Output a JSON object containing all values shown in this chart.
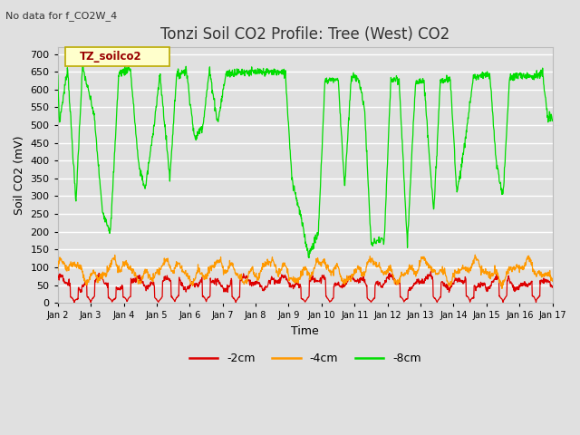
{
  "title": "Tonzi Soil CO2 Profile: Tree (West) CO2",
  "subtitle": "No data for f_CO2W_4",
  "ylabel": "Soil CO2 (mV)",
  "xlabel": "Time",
  "legend_label": "TZ_soilco2",
  "series_labels": [
    "-2cm",
    "-4cm",
    "-8cm"
  ],
  "series_colors": [
    "#dd0000",
    "#ff9900",
    "#00dd00"
  ],
  "ylim": [
    0,
    720
  ],
  "yticks": [
    0,
    50,
    100,
    150,
    200,
    250,
    300,
    350,
    400,
    450,
    500,
    550,
    600,
    650,
    700
  ],
  "xtick_labels": [
    "Jan 2",
    "Jan 3",
    "Jan 4",
    "Jan 5",
    "Jan 6",
    "Jan 7",
    "Jan 8",
    "Jan 9",
    "Jan 10",
    "Jan 11",
    "Jan 12",
    "Jan 13",
    "Jan 14",
    "Jan 15",
    "Jan 16",
    "Jan 17"
  ],
  "bg_color": "#e0e0e0",
  "plot_bg_color": "#e0e0e0",
  "grid_color": "#ffffff",
  "title_fontsize": 12,
  "axis_fontsize": 9,
  "tick_fontsize": 8,
  "legend_fontsize": 9
}
